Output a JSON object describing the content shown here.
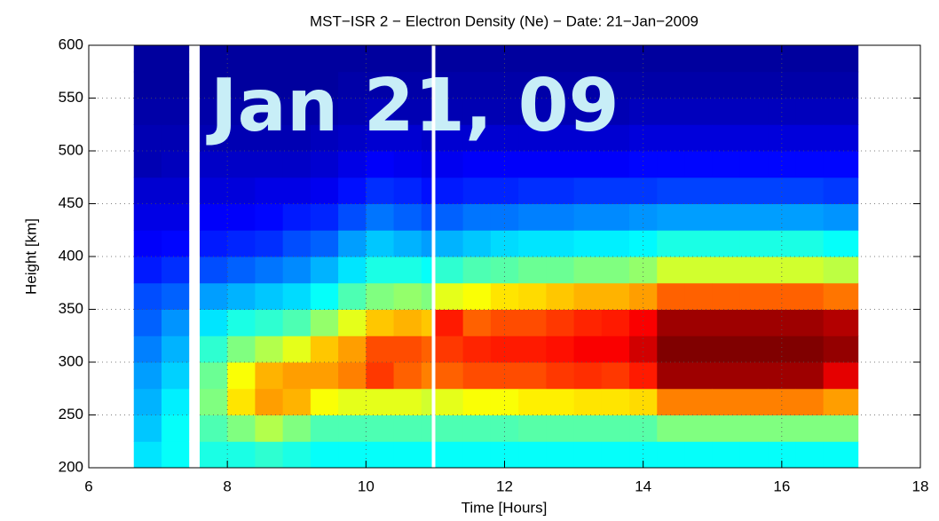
{
  "chart_data": {
    "type": "heatmap",
    "title": "MST−ISR 2 − Electron Density (Ne) − Date: 21−Jan−2009",
    "xlabel": "Time [Hours]",
    "ylabel": "Height [km]",
    "annotation": "Jan 21, 09",
    "colormap": "jet",
    "grid": true,
    "xlim": [
      6,
      18
    ],
    "xticks": [
      6,
      8,
      10,
      12,
      14,
      16,
      18
    ],
    "ylim": [
      200,
      600
    ],
    "yticks": [
      200,
      250,
      300,
      350,
      400,
      450,
      500,
      550,
      600
    ],
    "xbins": [
      6.65,
      7.05,
      7.45,
      7.6,
      8.0,
      8.4,
      8.8,
      9.2,
      9.6,
      10.0,
      10.4,
      10.8,
      10.95,
      11.0,
      11.4,
      11.8,
      12.2,
      12.6,
      13.0,
      13.4,
      13.8,
      14.2,
      14.6,
      15.0,
      15.4,
      15.8,
      16.2,
      16.6,
      17.1
    ],
    "ybins": [
      200,
      225,
      250,
      275,
      300,
      325,
      350,
      375,
      400,
      425,
      450,
      475,
      500,
      525,
      550,
      575,
      600
    ],
    "z": [
      [
        0.35,
        0.32,
        0.3,
        0.28,
        0.25,
        0.22,
        0.2,
        0.15,
        0.12,
        0.1,
        0.08,
        0.05,
        0.05,
        0.04,
        0.03,
        0.03
      ],
      [
        0.38,
        0.38,
        0.36,
        0.33,
        0.3,
        0.27,
        0.22,
        0.17,
        0.13,
        0.1,
        0.08,
        0.06,
        0.05,
        0.04,
        0.03,
        0.03
      ],
      [
        null,
        null,
        null,
        null,
        null,
        null,
        null,
        null,
        null,
        null,
        null,
        null,
        null,
        null,
        null,
        null
      ],
      [
        0.4,
        0.45,
        0.5,
        0.48,
        0.42,
        0.35,
        0.28,
        0.2,
        0.15,
        0.12,
        0.09,
        0.07,
        0.05,
        0.04,
        0.03,
        0.03
      ],
      [
        0.4,
        0.5,
        0.65,
        0.62,
        0.5,
        0.4,
        0.3,
        0.22,
        0.16,
        0.12,
        0.09,
        0.07,
        0.05,
        0.04,
        0.03,
        0.03
      ],
      [
        0.42,
        0.55,
        0.72,
        0.7,
        0.55,
        0.42,
        0.32,
        0.24,
        0.17,
        0.13,
        0.1,
        0.07,
        0.05,
        0.04,
        0.03,
        0.03
      ],
      [
        0.4,
        0.5,
        0.7,
        0.72,
        0.6,
        0.45,
        0.34,
        0.26,
        0.2,
        0.15,
        0.1,
        0.07,
        0.05,
        0.04,
        0.03,
        0.03
      ],
      [
        0.38,
        0.45,
        0.62,
        0.72,
        0.68,
        0.52,
        0.38,
        0.3,
        0.22,
        0.16,
        0.11,
        0.08,
        0.06,
        0.04,
        0.03,
        0.03
      ],
      [
        0.38,
        0.45,
        0.6,
        0.75,
        0.72,
        0.6,
        0.45,
        0.35,
        0.28,
        0.2,
        0.14,
        0.1,
        0.07,
        0.05,
        0.04,
        0.03
      ],
      [
        0.38,
        0.45,
        0.6,
        0.82,
        0.8,
        0.68,
        0.5,
        0.4,
        0.32,
        0.24,
        0.17,
        0.12,
        0.08,
        0.06,
        0.04,
        0.03
      ],
      [
        0.38,
        0.45,
        0.6,
        0.78,
        0.8,
        0.7,
        0.52,
        0.4,
        0.3,
        0.22,
        0.16,
        0.11,
        0.08,
        0.05,
        0.04,
        0.03
      ],
      [
        0.38,
        0.45,
        0.58,
        0.75,
        0.78,
        0.68,
        0.5,
        0.38,
        0.28,
        0.2,
        0.14,
        0.1,
        0.07,
        0.05,
        0.04,
        0.03
      ],
      [
        null,
        null,
        null,
        null,
        null,
        null,
        null,
        null,
        null,
        null,
        null,
        null,
        null,
        null,
        null,
        null
      ],
      [
        0.38,
        0.45,
        0.6,
        0.78,
        0.82,
        0.85,
        0.6,
        0.42,
        0.3,
        0.22,
        0.15,
        0.11,
        0.08,
        0.05,
        0.04,
        0.03
      ],
      [
        0.38,
        0.45,
        0.62,
        0.8,
        0.84,
        0.78,
        0.62,
        0.45,
        0.32,
        0.24,
        0.16,
        0.12,
        0.08,
        0.05,
        0.04,
        0.03
      ],
      [
        0.38,
        0.45,
        0.62,
        0.8,
        0.85,
        0.8,
        0.65,
        0.46,
        0.34,
        0.24,
        0.16,
        0.12,
        0.08,
        0.05,
        0.04,
        0.03
      ],
      [
        0.38,
        0.46,
        0.64,
        0.8,
        0.85,
        0.8,
        0.66,
        0.48,
        0.35,
        0.25,
        0.17,
        0.12,
        0.08,
        0.05,
        0.04,
        0.03
      ],
      [
        0.38,
        0.46,
        0.64,
        0.82,
        0.86,
        0.82,
        0.68,
        0.48,
        0.35,
        0.25,
        0.17,
        0.12,
        0.08,
        0.05,
        0.04,
        0.03
      ],
      [
        0.38,
        0.46,
        0.65,
        0.83,
        0.88,
        0.84,
        0.7,
        0.5,
        0.36,
        0.26,
        0.18,
        0.12,
        0.08,
        0.05,
        0.04,
        0.03
      ],
      [
        0.38,
        0.46,
        0.65,
        0.82,
        0.88,
        0.85,
        0.7,
        0.5,
        0.36,
        0.26,
        0.18,
        0.12,
        0.08,
        0.05,
        0.04,
        0.03
      ],
      [
        0.38,
        0.46,
        0.66,
        0.85,
        0.92,
        0.88,
        0.72,
        0.52,
        0.37,
        0.27,
        0.18,
        0.13,
        0.09,
        0.06,
        0.04,
        0.03
      ],
      [
        0.38,
        0.5,
        0.75,
        0.97,
        1,
        0.97,
        0.78,
        0.58,
        0.4,
        0.28,
        0.19,
        0.13,
        0.09,
        0.06,
        0.04,
        0.03
      ],
      [
        0.38,
        0.5,
        0.75,
        0.97,
        1,
        0.97,
        0.78,
        0.58,
        0.4,
        0.28,
        0.19,
        0.13,
        0.09,
        0.06,
        0.04,
        0.03
      ],
      [
        0.38,
        0.5,
        0.75,
        0.97,
        1,
        0.97,
        0.78,
        0.58,
        0.4,
        0.28,
        0.19,
        0.13,
        0.09,
        0.06,
        0.04,
        0.03
      ],
      [
        0.38,
        0.5,
        0.75,
        0.97,
        1,
        0.97,
        0.78,
        0.58,
        0.4,
        0.28,
        0.19,
        0.13,
        0.09,
        0.06,
        0.04,
        0.03
      ],
      [
        0.38,
        0.5,
        0.75,
        0.97,
        1,
        0.97,
        0.78,
        0.58,
        0.4,
        0.28,
        0.19,
        0.13,
        0.09,
        0.06,
        0.04,
        0.03
      ],
      [
        0.38,
        0.5,
        0.75,
        0.97,
        1,
        0.97,
        0.78,
        0.58,
        0.4,
        0.28,
        0.19,
        0.13,
        0.09,
        0.06,
        0.04,
        0.03
      ],
      [
        0.38,
        0.5,
        0.72,
        0.9,
        0.98,
        0.95,
        0.76,
        0.56,
        0.38,
        0.27,
        0.18,
        0.13,
        0.09,
        0.06,
        0.04,
        0.03
      ]
    ]
  }
}
